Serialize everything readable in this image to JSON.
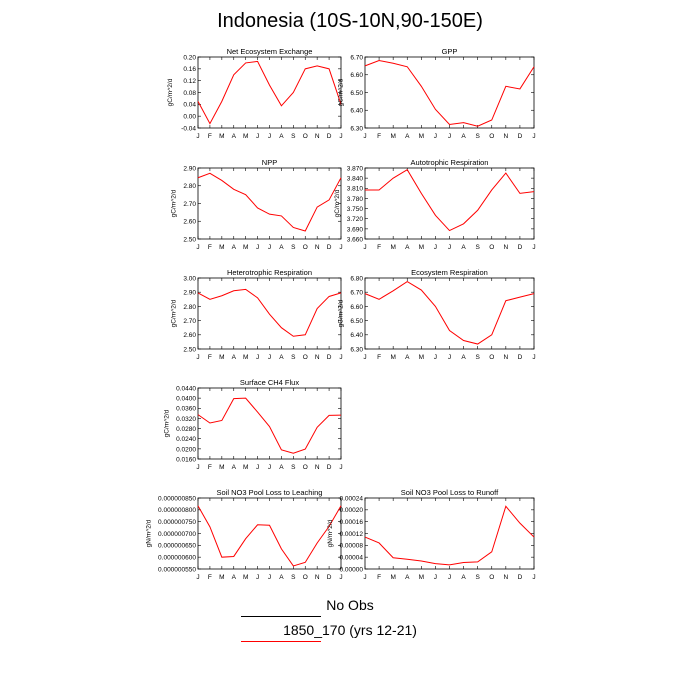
{
  "figure_title": "Indonesia (10S-10N,90-150E)",
  "legend": {
    "obs_label": "No Obs",
    "model_label": "1850_170 (yrs 12-21)",
    "model_color": "#ff0000",
    "obs_color": "#000000"
  },
  "chart_data": [
    {
      "type": "line",
      "title": "Net Ecosystem Exchange",
      "ylabel": "gC/m^2/d",
      "x": [
        "J",
        "F",
        "M",
        "A",
        "M",
        "J",
        "J",
        "A",
        "S",
        "O",
        "N",
        "D",
        "J"
      ],
      "ylim": [
        -0.04,
        0.2
      ],
      "yticks": [
        "-0.04",
        "0.00",
        "0.04",
        "0.08",
        "0.12",
        "0.16",
        "0.20"
      ],
      "series": [
        {
          "color": "#ff0000",
          "values": [
            0.05,
            -0.025,
            0.05,
            0.14,
            0.18,
            0.185,
            0.105,
            0.035,
            0.08,
            0.16,
            0.17,
            0.16,
            0.04
          ]
        }
      ]
    },
    {
      "type": "line",
      "title": "GPP",
      "ylabel": "gC/m^2/d",
      "x": [
        "J",
        "F",
        "M",
        "A",
        "M",
        "J",
        "J",
        "A",
        "S",
        "O",
        "N",
        "D",
        "J"
      ],
      "ylim": [
        6.3,
        6.7
      ],
      "yticks": [
        "6.30",
        "6.40",
        "6.50",
        "6.60",
        "6.70"
      ],
      "series": [
        {
          "color": "#ff0000",
          "values": [
            6.65,
            6.68,
            6.665,
            6.645,
            6.535,
            6.405,
            6.32,
            6.33,
            6.31,
            6.345,
            6.535,
            6.52,
            6.645
          ]
        }
      ]
    },
    {
      "type": "line",
      "title": "NPP",
      "ylabel": "gC/m^2/d",
      "x": [
        "J",
        "F",
        "M",
        "A",
        "M",
        "J",
        "J",
        "A",
        "S",
        "O",
        "N",
        "D",
        "J"
      ],
      "ylim": [
        2.5,
        2.9
      ],
      "yticks": [
        "2.50",
        "2.60",
        "2.70",
        "2.80",
        "2.90"
      ],
      "series": [
        {
          "color": "#ff0000",
          "values": [
            2.845,
            2.87,
            2.83,
            2.78,
            2.75,
            2.675,
            2.64,
            2.63,
            2.565,
            2.545,
            2.68,
            2.72,
            2.845
          ]
        }
      ]
    },
    {
      "type": "line",
      "title": "Autotrophic Respiration",
      "ylabel": "gC/m^2/d",
      "x": [
        "J",
        "F",
        "M",
        "A",
        "M",
        "J",
        "J",
        "A",
        "S",
        "O",
        "N",
        "D",
        "J"
      ],
      "ylim": [
        3.66,
        3.87
      ],
      "yticks": [
        "3.660",
        "3.690",
        "3.720",
        "3.750",
        "3.780",
        "3.810",
        "3.840",
        "3.870"
      ],
      "series": [
        {
          "color": "#ff0000",
          "values": [
            3.805,
            3.805,
            3.84,
            3.865,
            3.795,
            3.73,
            3.685,
            3.705,
            3.745,
            3.805,
            3.855,
            3.795,
            3.8
          ]
        }
      ]
    },
    {
      "type": "line",
      "title": "Heterotrophic Respiration",
      "ylabel": "gC/m^2/d",
      "x": [
        "J",
        "F",
        "M",
        "A",
        "M",
        "J",
        "J",
        "A",
        "S",
        "O",
        "N",
        "D",
        "J"
      ],
      "ylim": [
        2.5,
        3.0
      ],
      "yticks": [
        "2.50",
        "2.60",
        "2.70",
        "2.80",
        "2.90",
        "3.00"
      ],
      "series": [
        {
          "color": "#ff0000",
          "values": [
            2.895,
            2.85,
            2.875,
            2.91,
            2.92,
            2.86,
            2.745,
            2.65,
            2.59,
            2.6,
            2.785,
            2.87,
            2.895
          ]
        }
      ]
    },
    {
      "type": "line",
      "title": "Ecosystem Respiration",
      "ylabel": "gC/m^2/d",
      "x": [
        "J",
        "F",
        "M",
        "A",
        "M",
        "J",
        "J",
        "A",
        "S",
        "O",
        "N",
        "D",
        "J"
      ],
      "ylim": [
        6.3,
        6.8
      ],
      "yticks": [
        "6.30",
        "6.40",
        "6.50",
        "6.60",
        "6.70",
        "6.80"
      ],
      "series": [
        {
          "color": "#ff0000",
          "values": [
            6.69,
            6.65,
            6.71,
            6.775,
            6.715,
            6.6,
            6.43,
            6.36,
            6.335,
            6.4,
            6.64,
            6.665,
            6.69
          ]
        }
      ]
    },
    {
      "type": "line",
      "title": "Surface CH4 Flux",
      "ylabel": "gC/m^2/d",
      "x": [
        "J",
        "F",
        "M",
        "A",
        "M",
        "J",
        "J",
        "A",
        "S",
        "O",
        "N",
        "D",
        "J"
      ],
      "ylim": [
        0.016,
        0.044
      ],
      "yticks": [
        "0.0160",
        "0.0200",
        "0.0240",
        "0.0280",
        "0.0320",
        "0.0360",
        "0.0400",
        "0.0440"
      ],
      "series": [
        {
          "color": "#ff0000",
          "values": [
            0.0335,
            0.0302,
            0.0312,
            0.0398,
            0.04,
            0.0345,
            0.0288,
            0.0196,
            0.0183,
            0.0199,
            0.0285,
            0.0332,
            0.0333
          ]
        }
      ]
    },
    {
      "type": "line",
      "title": "Soil NO3 Pool Loss to Leaching",
      "ylabel": "gN/m^2/d",
      "x": [
        "J",
        "F",
        "M",
        "A",
        "M",
        "J",
        "J",
        "A",
        "S",
        "O",
        "N",
        "D",
        "J"
      ],
      "ylim": [
        5.5e-07,
        8.5e-07
      ],
      "yticks": [
        "0.000000550",
        "0.000000600",
        "0.000000650",
        "0.000000700",
        "0.000000750",
        "0.000000800",
        "0.000000850"
      ],
      "series": [
        {
          "color": "#ff0000",
          "values": [
            8.17e-07,
            7.28e-07,
            6e-07,
            6.03e-07,
            6.78e-07,
            7.37e-07,
            7.35e-07,
            6.35e-07,
            5.63e-07,
            5.78e-07,
            6.6e-07,
            7.3e-07,
            8.17e-07
          ]
        }
      ]
    },
    {
      "type": "line",
      "title": "Soil NO3 Pool Loss to Runoff",
      "ylabel": "gN/m^2/d",
      "x": [
        "J",
        "F",
        "M",
        "A",
        "M",
        "J",
        "J",
        "A",
        "S",
        "O",
        "N",
        "D",
        "J"
      ],
      "ylim": [
        0.0,
        0.00024
      ],
      "yticks": [
        "0.00000",
        "0.00004",
        "0.00008",
        "0.00012",
        "0.00016",
        "0.00020",
        "0.00024"
      ],
      "series": [
        {
          "color": "#ff0000",
          "values": [
            0.000108,
            8.8e-05,
            3.8e-05,
            3.3e-05,
            2.7e-05,
            1.8e-05,
            1.4e-05,
            2.2e-05,
            2.4e-05,
            5.8e-05,
            0.000212,
            0.000155,
            0.000108
          ]
        }
      ]
    }
  ]
}
